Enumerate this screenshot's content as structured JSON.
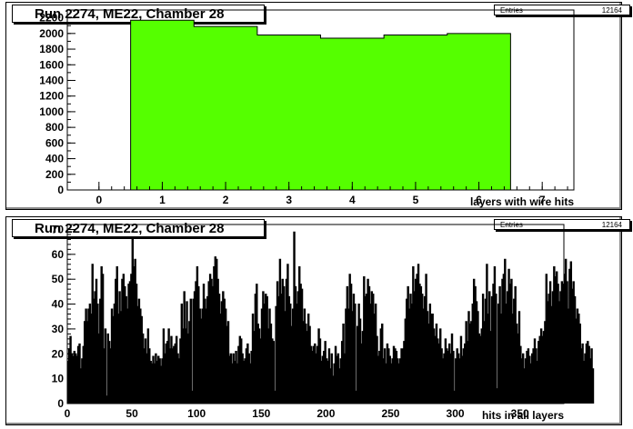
{
  "chart_data": [
    {
      "type": "bar",
      "title": "Run 2274, ME22, Chamber 28",
      "stats": {
        "label": "Entries",
        "value": "12164"
      },
      "xlabel": "layers with wire hits",
      "ylabel": "",
      "xlim": [
        -0.5,
        7.5
      ],
      "ylim": [
        0,
        2300
      ],
      "xticks": [
        0,
        1,
        2,
        3,
        4,
        5,
        6,
        7
      ],
      "yticks": [
        0,
        200,
        400,
        600,
        800,
        1000,
        1200,
        1400,
        1600,
        1800,
        2000,
        2200
      ],
      "x": [
        1,
        2,
        3,
        4,
        5,
        6
      ],
      "values": [
        2170,
        2090,
        1980,
        1940,
        1980,
        2000
      ],
      "bin_width": 1,
      "fill_color": "#55ff00"
    },
    {
      "type": "bar",
      "title": "Run 2274, ME22, Chamber 28",
      "stats": {
        "label": "Entries",
        "value": "12164"
      },
      "xlabel": "hits in all layers",
      "ylabel": "",
      "xlim": [
        0,
        384
      ],
      "ylim": [
        0,
        72
      ],
      "xticks": [
        0,
        50,
        100,
        150,
        200,
        250,
        300,
        350
      ],
      "yticks": [
        0,
        10,
        20,
        30,
        40,
        50,
        60,
        70
      ],
      "x_start": 0,
      "bin_width": 1,
      "values": [
        17,
        22,
        27,
        20,
        19,
        21,
        20,
        19,
        23,
        24,
        14,
        18,
        23,
        33,
        38,
        33,
        38,
        40,
        36,
        56,
        42,
        45,
        50,
        40,
        28,
        42,
        55,
        52,
        22,
        30,
        3,
        28,
        25,
        22,
        38,
        35,
        40,
        50,
        55,
        36,
        45,
        37,
        50,
        52,
        47,
        43,
        38,
        48,
        49,
        52,
        67,
        55,
        58,
        48,
        39,
        42,
        38,
        35,
        28,
        22,
        26,
        20,
        30,
        22,
        17,
        16,
        19,
        16,
        20,
        17,
        19,
        18,
        15,
        18,
        30,
        20,
        24,
        25,
        30,
        22,
        27,
        22,
        23,
        24,
        27,
        20,
        18,
        26,
        40,
        30,
        45,
        30,
        41,
        28,
        33,
        42,
        5,
        42,
        45,
        49,
        55,
        47,
        38,
        34,
        38,
        48,
        42,
        38,
        43,
        49,
        52,
        50,
        47,
        55,
        59,
        58,
        50,
        44,
        36,
        41,
        45,
        42,
        38,
        31,
        33,
        19,
        20,
        16,
        20,
        17,
        21,
        16,
        23,
        27,
        26,
        20,
        17,
        18,
        22,
        24,
        20,
        16,
        21,
        36,
        29,
        44,
        48,
        32,
        30,
        26,
        38,
        45,
        40,
        44,
        43,
        30,
        38,
        32,
        26,
        25,
        5,
        39,
        49,
        43,
        58,
        44,
        50,
        47,
        37,
        50,
        56,
        43,
        40,
        31,
        38,
        69,
        47,
        40,
        45,
        55,
        48,
        46,
        33,
        38,
        32,
        29,
        36,
        31,
        23,
        21,
        23,
        24,
        20,
        23,
        30,
        26,
        17,
        19,
        21,
        25,
        18,
        17,
        22,
        14,
        20,
        11,
        16,
        23,
        19,
        20,
        14,
        18,
        25,
        32,
        20,
        38,
        47,
        38,
        52,
        48,
        37,
        44,
        40,
        5,
        31,
        40,
        34,
        24,
        29,
        51,
        43,
        44,
        50,
        47,
        40,
        45,
        44,
        36,
        40,
        27,
        19,
        21,
        30,
        32,
        18,
        22,
        16,
        24,
        22,
        19,
        16,
        18,
        23,
        22,
        21,
        18,
        16,
        18,
        22,
        22,
        25,
        34,
        42,
        47,
        38,
        44,
        40,
        55,
        45,
        50,
        52,
        56,
        48,
        47,
        44,
        38,
        43,
        52,
        37,
        32,
        40,
        36,
        36,
        30,
        27,
        32,
        26,
        24,
        30,
        22,
        18,
        20,
        26,
        22,
        21,
        24,
        20,
        28,
        21,
        5,
        18,
        22,
        20,
        18,
        27,
        19,
        22,
        24,
        33,
        25,
        37,
        32,
        33,
        40,
        50,
        47,
        41,
        37,
        28,
        27,
        30,
        44,
        33,
        42,
        56,
        36,
        45,
        29,
        43,
        48,
        55,
        44,
        6,
        40,
        47,
        36,
        50,
        52,
        58,
        40,
        45,
        54,
        48,
        50,
        36,
        42,
        47,
        32,
        28,
        37,
        23,
        18,
        20,
        14,
        18,
        21,
        22,
        19,
        16,
        20,
        22,
        26,
        22,
        17,
        25,
        27,
        30,
        27,
        29,
        33,
        52,
        41,
        44,
        49,
        39,
        45,
        55,
        51,
        53,
        48,
        41,
        45,
        49,
        48,
        52,
        58,
        49,
        38,
        54,
        57,
        46,
        49,
        43,
        34,
        38,
        36,
        32,
        22,
        24,
        17,
        20,
        24,
        25,
        23,
        18,
        22,
        14
      ]
    }
  ]
}
